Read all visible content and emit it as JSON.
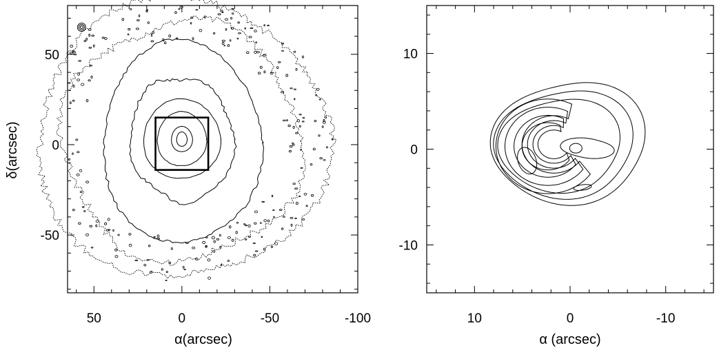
{
  "chart_data": [
    {
      "type": "contour",
      "xlabel": "α(arcsec)",
      "ylabel": "δ(arcsec)",
      "xlim": [
        65,
        -100
      ],
      "ylim": [
        -82,
        77
      ],
      "x_ticks": [
        50,
        0,
        -50,
        -100
      ],
      "x_tick_labels": [
        "50",
        "0",
        "-50",
        "-100"
      ],
      "y_ticks": [
        50,
        0,
        -50
      ],
      "y_tick_labels": [
        "50",
        "0",
        "-50"
      ],
      "center": [
        0,
        4
      ],
      "contours": [
        {
          "level": 1,
          "rx": 3,
          "ry": 4,
          "cy": 3
        },
        {
          "level": 2,
          "rx": 6,
          "ry": 7,
          "cy": 3
        },
        {
          "level": 3,
          "rx": 14,
          "ry": 15,
          "cy": 3
        },
        {
          "level": 4,
          "rx": 22,
          "ry": 22,
          "cy": 3
        },
        {
          "level": 5,
          "rx": 28,
          "ry": 36,
          "cy": 3
        },
        {
          "level": 6,
          "rx": 45,
          "ry": 56,
          "cy": 1
        },
        {
          "level": 7,
          "rx": 66,
          "ry": 68,
          "cy": 2
        },
        {
          "level": 8,
          "rx": 83,
          "ry": 77,
          "cy": 3
        }
      ],
      "inset_box": {
        "x": [
          -15,
          15
        ],
        "y": [
          -14,
          15
        ]
      }
    },
    {
      "type": "contour",
      "xlabel": "α (arcsec)",
      "ylabel": "",
      "xlim": [
        15,
        -15
      ],
      "ylim": [
        -15,
        15
      ],
      "x_ticks": [
        10,
        0,
        -10
      ],
      "x_tick_labels": [
        "10",
        "0",
        "-10"
      ],
      "y_ticks": [
        10,
        0,
        -10
      ],
      "y_tick_labels": [
        "10",
        "0",
        "-10"
      ],
      "peaks": [
        {
          "x": 4.5,
          "y": -1.2
        },
        {
          "x": -0.6,
          "y": 0.1
        },
        {
          "x": -1.3,
          "y": -4.0
        }
      ]
    }
  ]
}
